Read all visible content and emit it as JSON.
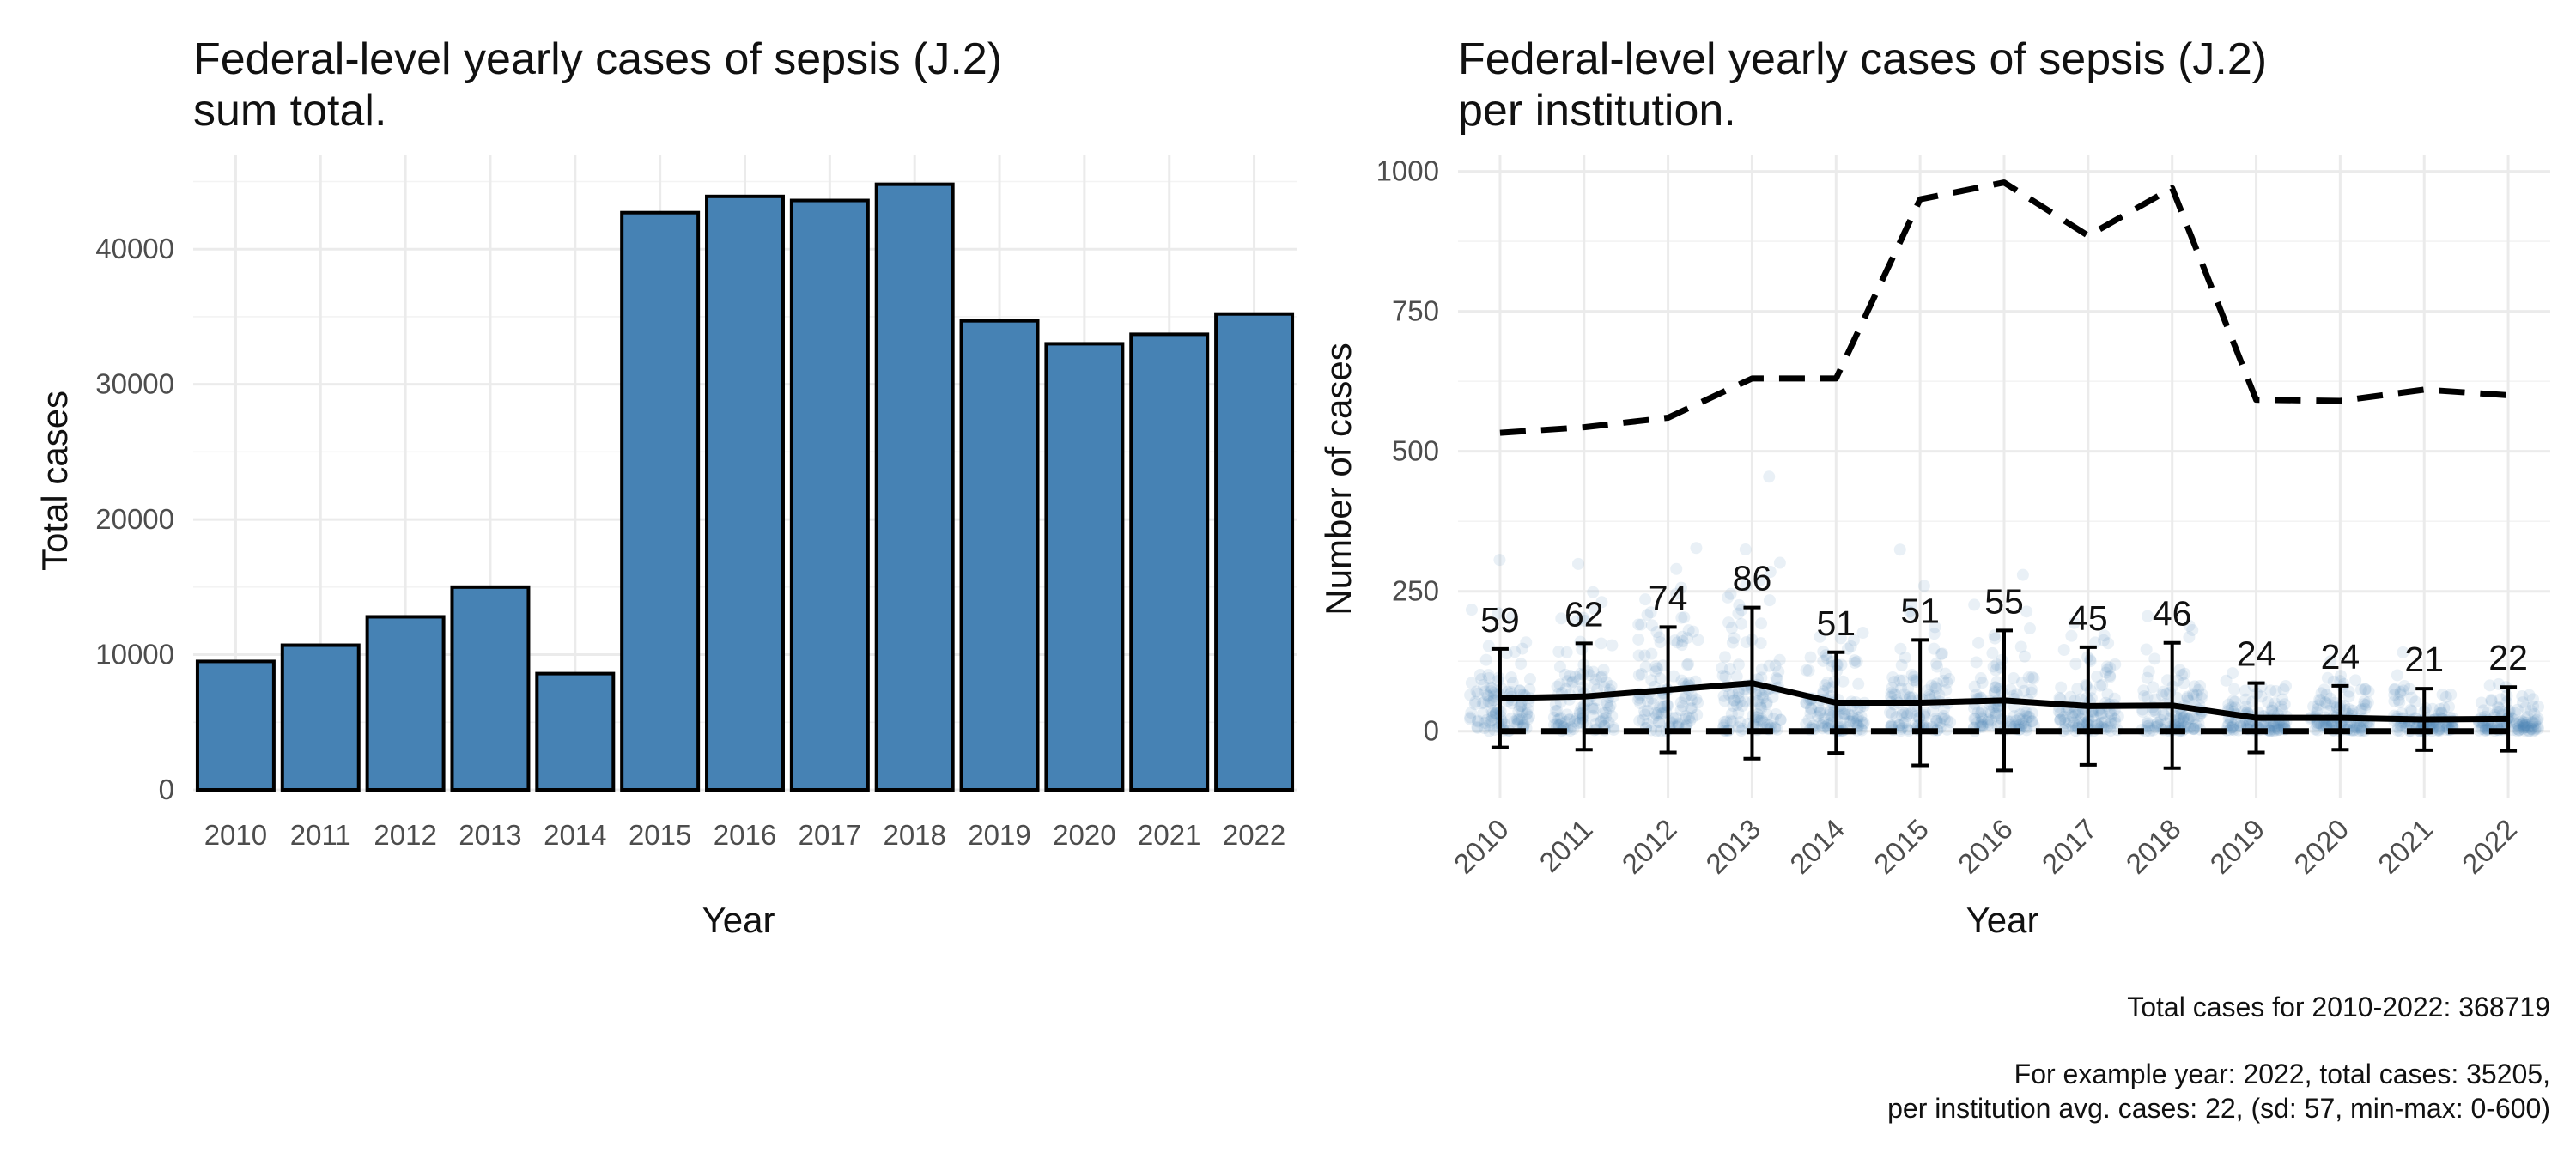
{
  "chart_data": [
    {
      "type": "bar",
      "title_line1": "Federal-level yearly cases of sepsis (J.2)",
      "title_line2": "sum total.",
      "xlabel": "Year",
      "ylabel": "Total cases",
      "categories": [
        "2010",
        "2011",
        "2012",
        "2013",
        "2014",
        "2015",
        "2016",
        "2017",
        "2018",
        "2019",
        "2020",
        "2021",
        "2022"
      ],
      "values": [
        9500,
        10700,
        12800,
        15000,
        8600,
        42700,
        43900,
        43600,
        44800,
        34700,
        33000,
        33700,
        35205
      ],
      "ylim": [
        0,
        47000
      ],
      "yticks": [
        0,
        10000,
        20000,
        30000,
        40000
      ],
      "bar_color": "#4682b4",
      "bar_outline": "#000000",
      "grid": true
    },
    {
      "type": "line",
      "title_line1": "Federal-level yearly cases of sepsis (J.2)",
      "title_line2": "per institution.",
      "xlabel": "Year",
      "ylabel": "Number of cases",
      "categories": [
        "2010",
        "2011",
        "2012",
        "2013",
        "2014",
        "2015",
        "2016",
        "2017",
        "2018",
        "2019",
        "2020",
        "2021",
        "2022"
      ],
      "ylim": [
        -120,
        1030
      ],
      "yticks": [
        0,
        250,
        500,
        750,
        1000
      ],
      "x_tick_rotation": 45,
      "mean": [
        59,
        62,
        74,
        86,
        51,
        51,
        55,
        45,
        46,
        24,
        24,
        21,
        22
      ],
      "mean_labels": [
        "59",
        "62",
        "74",
        "86",
        "51",
        "51",
        "55",
        "45",
        "46",
        "24",
        "24",
        "21",
        "22"
      ],
      "sd": [
        88,
        95,
        112,
        135,
        90,
        112,
        125,
        105,
        112,
        62,
        57,
        55,
        57
      ],
      "min": [
        0,
        0,
        0,
        0,
        0,
        0,
        0,
        0,
        0,
        0,
        0,
        0,
        0
      ],
      "max": [
        533,
        543,
        560,
        630,
        630,
        950,
        980,
        885,
        970,
        592,
        590,
        610,
        600
      ],
      "series": [
        {
          "name": "mean",
          "style": "solid"
        },
        {
          "name": "sd",
          "style": "errorbar"
        },
        {
          "name": "min",
          "style": "dashed"
        },
        {
          "name": "max",
          "style": "dashed"
        }
      ],
      "points_color": "#4682b4",
      "grid": true
    }
  ],
  "captions": {
    "total": "Total cases for 2010-2022: 368719",
    "example_line1": "For example year: 2022, total cases: 35205,",
    "example_line2": "per institution avg. cases: 22, (sd: 57, min-max: 0-600)"
  }
}
